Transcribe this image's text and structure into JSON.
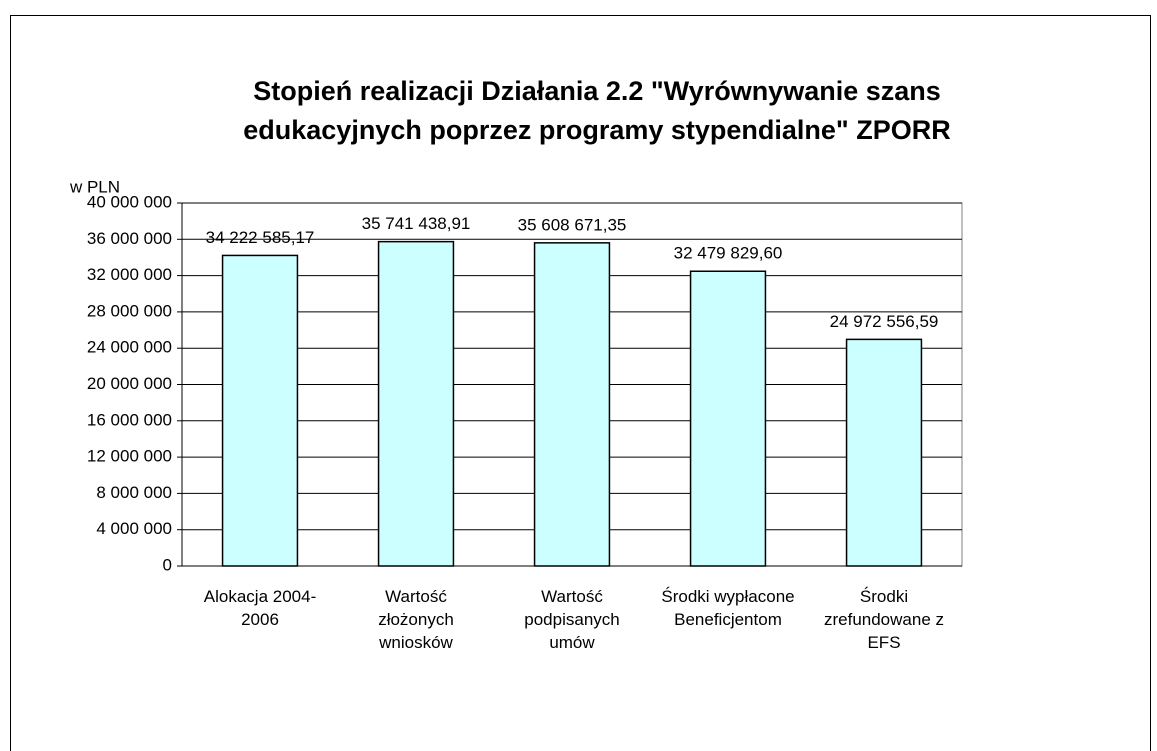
{
  "chart_data": {
    "type": "bar",
    "title": "Stopień realizacji Działania 2.2 \"Wyrównywanie szans edukacyjnych poprzez programy stypendialne\" ZPORR",
    "y_label": "w PLN",
    "categories": [
      "Alokacja 2004-2006",
      "Wartość złożonych wniosków",
      "Wartość podpisanych umów",
      "Środki wypłacone Beneficjentom",
      "Środki zrefundowane z EFS"
    ],
    "values": [
      34222585.17,
      35741438.91,
      35608671.35,
      32479829.6,
      24972556.59
    ],
    "value_labels": [
      "34 222 585,17",
      "35 741 438,91",
      "35 608 671,35",
      "32 479 829,60",
      "24 972 556,59"
    ],
    "color": "#ccffff",
    "ylim": [
      0,
      40000000
    ],
    "yticks": [
      0,
      {
        "value": 4000000,
        "label": "4 000 000"
      },
      {
        "value": 8000000,
        "label": "8 000 000"
      },
      {
        "value": 12000000,
        "label": "12 000 000"
      },
      {
        "value": 16000000,
        "label": "16 000 000"
      },
      {
        "value": 20000000,
        "label": "20 000 000"
      },
      {
        "value": 24000000,
        "label": "24 000 000"
      },
      {
        "value": 28000000,
        "label": "28 000 000"
      },
      {
        "value": 32000000,
        "label": "32 000 000"
      },
      {
        "value": 36000000,
        "label": "36 000 000"
      },
      {
        "value": 40000000,
        "label": "40 000 000"
      }
    ],
    "grid": true
  }
}
